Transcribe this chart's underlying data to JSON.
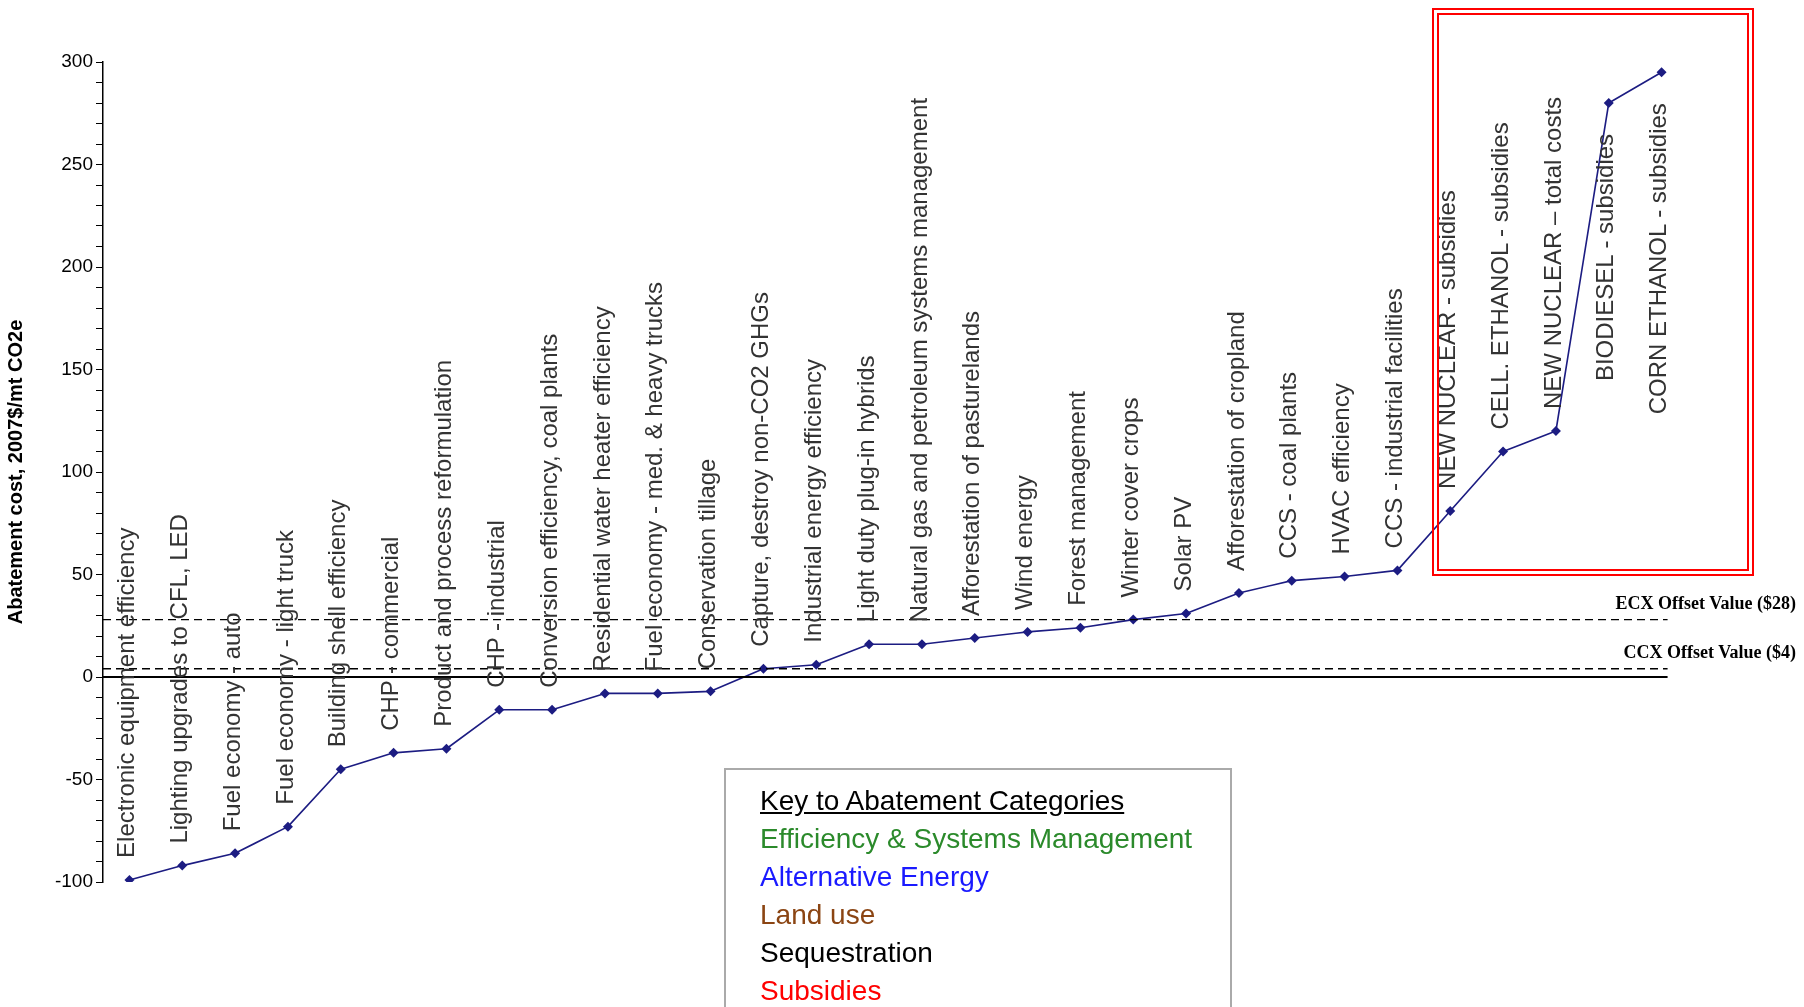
{
  "chart_data": {
    "type": "line",
    "ylabel": "Abatement cost, 2007$/mt CO2e",
    "categories": [
      "Electronic equipment efficiency",
      "Lighting upgrades to CFL, LED",
      "Fuel economy - auto",
      "Fuel economy - light truck",
      "Building shell efficiency",
      "CHP - commercial",
      "Product and process reformulation",
      "CHP - industrial",
      "Conversion efficiency, coal plants",
      "Residential water heater efficiency",
      "Fuel economy - med. & heavy trucks",
      "Conservation tillage",
      "Capture, destroy non-CO2 GHGs",
      "Industrial energy efficiency",
      "Light duty plug-in hybrids",
      "Natural gas and petroleum systems management",
      "Afforestation of pasturelands",
      "Wind energy",
      "Forest management",
      "Winter cover crops",
      "Solar PV",
      "Afforestation of cropland",
      "CCS - coal plants",
      "HVAC efficiency",
      "CCS - industrial facilities",
      "NEW NUCLEAR - subsidies",
      "CELL. ETHANOL - subsidies",
      "NEW NUCLEAR – total costs",
      "BIODIESEL - subsidies",
      "CORN ETHANOL - subsidies"
    ],
    "series": [
      {
        "color": "#1c1c82",
        "values": [
          -99,
          -92,
          -86,
          -73,
          -45,
          -37,
          -35,
          -16,
          -16,
          -8,
          -8,
          -7,
          4,
          6,
          16,
          16,
          19,
          22,
          24,
          28,
          31,
          41,
          47,
          49,
          52,
          81,
          110,
          120,
          280,
          295
        ]
      }
    ],
    "ylim": [
      -100,
      300
    ],
    "yticks": [
      -100,
      {
        "value": -90,
        "label": null
      },
      {
        "value": -80,
        "label": null
      },
      {
        "value": -70,
        "label": null
      },
      {
        "value": -60,
        "label": null
      },
      -50,
      {
        "value": -40,
        "label": null
      },
      {
        "value": -30,
        "label": null
      },
      {
        "value": -20,
        "label": null
      },
      {
        "value": -10,
        "label": null
      },
      0,
      {
        "value": 10,
        "label": null
      },
      {
        "value": 20,
        "label": null
      },
      {
        "value": 30,
        "label": null
      },
      {
        "value": 40,
        "label": null
      },
      50,
      {
        "value": 60,
        "label": null
      },
      {
        "value": 70,
        "label": null
      },
      {
        "value": 80,
        "label": null
      },
      {
        "value": 90,
        "label": null
      },
      100,
      {
        "value": 110,
        "label": null
      },
      {
        "value": 120,
        "label": null
      },
      {
        "value": 130,
        "label": null
      },
      {
        "value": 140,
        "label": null
      },
      150,
      {
        "value": 160,
        "label": null
      },
      {
        "value": 170,
        "label": null
      },
      {
        "value": 180,
        "label": null
      },
      {
        "value": 190,
        "label": null
      },
      200,
      {
        "value": 210,
        "label": null
      },
      {
        "value": 220,
        "label": null
      },
      {
        "value": 230,
        "label": null
      },
      {
        "value": 240,
        "label": null
      },
      250,
      {
        "value": 260,
        "label": null
      },
      {
        "value": 270,
        "label": null
      },
      {
        "value": 280,
        "label": null
      },
      {
        "value": 290,
        "label": null
      },
      300
    ],
    "ref_lines": [
      {
        "axis": "y",
        "value": 0,
        "color": "#000000",
        "line_style": "solid"
      },
      {
        "axis": "y",
        "value": 28,
        "label": "ECX Offset Value ($28)",
        "color": "#000000",
        "line_style": "dashed"
      },
      {
        "axis": "y",
        "value": 4,
        "label": "CCX Offset Value ($4)",
        "color": "#000000",
        "line_style": "dashed"
      }
    ],
    "legend_title": "Key to Abatement Categories",
    "annotations": [
      "Efficiency & Systems Management",
      "Alternative Energy",
      "Land use",
      "Sequestration",
      "Subsidies"
    ],
    "marker": "diamond",
    "line_style": "solid",
    "grid": false,
    "legend": false
  }
}
